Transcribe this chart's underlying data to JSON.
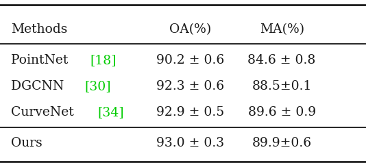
{
  "header": [
    "Methods",
    "OA(%)",
    "MA(%)"
  ],
  "rows": [
    {
      "method": "PointNet",
      "ref": "[18]",
      "oa": "90.2 ± 0.6",
      "ma": "84.6 ± 0.8"
    },
    {
      "method": "DGCNN",
      "ref": "[30]",
      "oa": "92.3 ± 0.6",
      "ma": "88.5±0.1"
    },
    {
      "method": "CurveNet",
      "ref": "[34]",
      "oa": "92.9 ± 0.5",
      "ma": "89.6 ± 0.9"
    },
    {
      "method": "Ours",
      "ref": "",
      "oa": "93.0 ± 0.3",
      "ma": "89.9±0.6"
    }
  ],
  "ref_color": "#00cc00",
  "text_color": "#1a1a1a",
  "bg_color": "#ffffff",
  "fontsize": 13.5,
  "line_thick": 1.8,
  "line_thin": 1.2
}
